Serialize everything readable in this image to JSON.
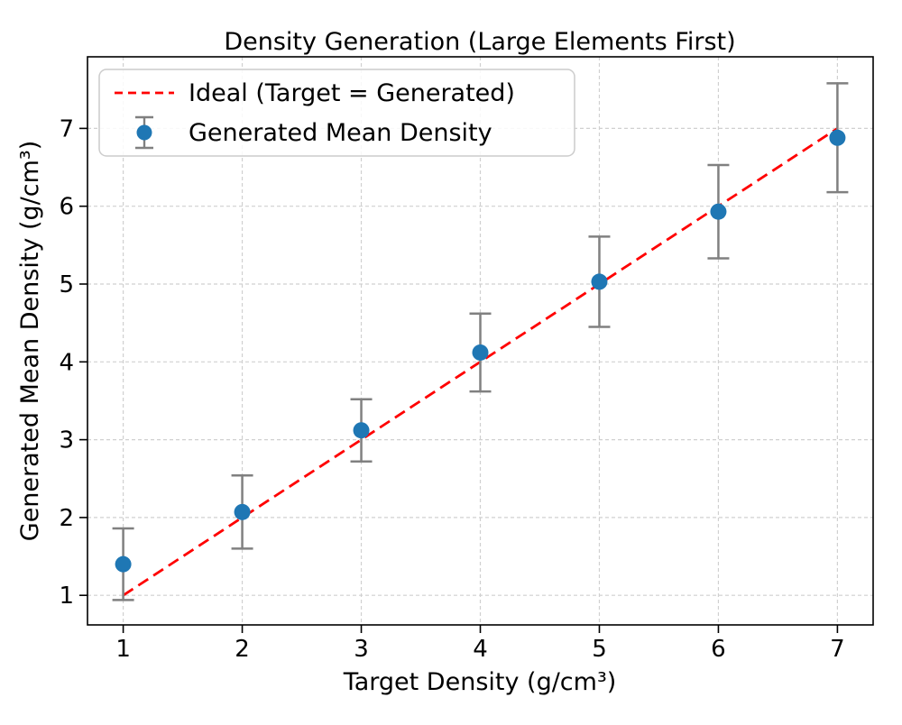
{
  "chart_data": {
    "type": "scatter",
    "title": "Density Generation (Large Elements First)",
    "xlabel": "Target Density (g/cm³)",
    "ylabel": "Generated Mean Density (g/cm³)",
    "x": [
      1,
      2,
      3,
      4,
      5,
      6,
      7
    ],
    "series": [
      {
        "name": "Generated Mean Density",
        "type": "scatter-errorbar",
        "y": [
          1.4,
          2.07,
          3.12,
          4.12,
          5.03,
          5.93,
          6.88
        ],
        "yerr": [
          0.46,
          0.47,
          0.4,
          0.5,
          0.58,
          0.6,
          0.7
        ],
        "marker_color": "#1f77b4",
        "error_color": "#808080"
      },
      {
        "name": "Ideal (Target = Generated)",
        "type": "line",
        "style": "dashed",
        "points_x": [
          1,
          7
        ],
        "points_y": [
          1,
          7
        ],
        "color": "#ff0000"
      }
    ],
    "xlim": [
      0.7,
      7.3
    ],
    "ylim": [
      0.62,
      7.92
    ],
    "xticks": [
      1,
      2,
      3,
      4,
      5,
      6,
      7
    ],
    "yticks": [
      1,
      2,
      3,
      4,
      5,
      6,
      7
    ],
    "grid": {
      "on": true,
      "color": "#d0d0d0",
      "dash": "4 3"
    },
    "axis_color": "#000000",
    "legend": {
      "position": "upper-left",
      "entries": [
        {
          "label": "Ideal (Target = Generated)",
          "marker": "dashed-line",
          "color": "#ff0000"
        },
        {
          "label": "Generated Mean Density",
          "marker": "errorbar-dot",
          "color": "#1f77b4",
          "error_color": "#808080"
        }
      ]
    }
  }
}
